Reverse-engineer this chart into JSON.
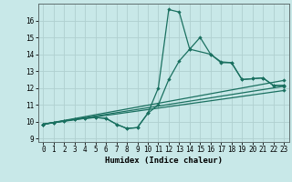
{
  "background_color": "#c8e8e8",
  "grid_color": "#b0d0d0",
  "line_color": "#1a7060",
  "xlabel": "Humidex (Indice chaleur)",
  "xlim": [
    -0.5,
    23.5
  ],
  "ylim": [
    8.8,
    17.0
  ],
  "xticks": [
    0,
    1,
    2,
    3,
    4,
    5,
    6,
    7,
    8,
    9,
    10,
    11,
    12,
    13,
    14,
    15,
    16,
    17,
    18,
    19,
    20,
    21,
    22,
    23
  ],
  "yticks": [
    9,
    10,
    11,
    12,
    13,
    14,
    15,
    16
  ],
  "line1_x": [
    0,
    1,
    2,
    3,
    4,
    5,
    6,
    7,
    8,
    9,
    10,
    11,
    12,
    13,
    14,
    16,
    17,
    18,
    19,
    20,
    21,
    22,
    23
  ],
  "line1_y": [
    9.85,
    9.95,
    10.05,
    10.15,
    10.2,
    10.25,
    10.2,
    9.85,
    9.6,
    9.65,
    10.5,
    12.0,
    16.65,
    16.5,
    14.3,
    14.0,
    13.5,
    13.5,
    12.5,
    12.55,
    12.6,
    12.15,
    12.15
  ],
  "line2_x": [
    0,
    1,
    2,
    3,
    4,
    5,
    6,
    7,
    8,
    9,
    10,
    11,
    12,
    13,
    14,
    15,
    16,
    17,
    18,
    19,
    20,
    21,
    22,
    23
  ],
  "line2_y": [
    9.85,
    9.95,
    10.05,
    10.15,
    10.2,
    10.25,
    10.2,
    9.85,
    9.6,
    9.65,
    10.5,
    11.0,
    12.5,
    13.6,
    14.3,
    15.0,
    14.0,
    13.55,
    13.5,
    12.5,
    12.55,
    12.6,
    12.15,
    12.15
  ],
  "line3_x": [
    0,
    23
  ],
  "line3_y": [
    9.85,
    11.85
  ],
  "line4_x": [
    0,
    23
  ],
  "line4_y": [
    9.85,
    12.1
  ],
  "line5_x": [
    0,
    23
  ],
  "line5_y": [
    9.85,
    12.45
  ],
  "figwidth": 3.2,
  "figheight": 2.0,
  "dpi": 100
}
